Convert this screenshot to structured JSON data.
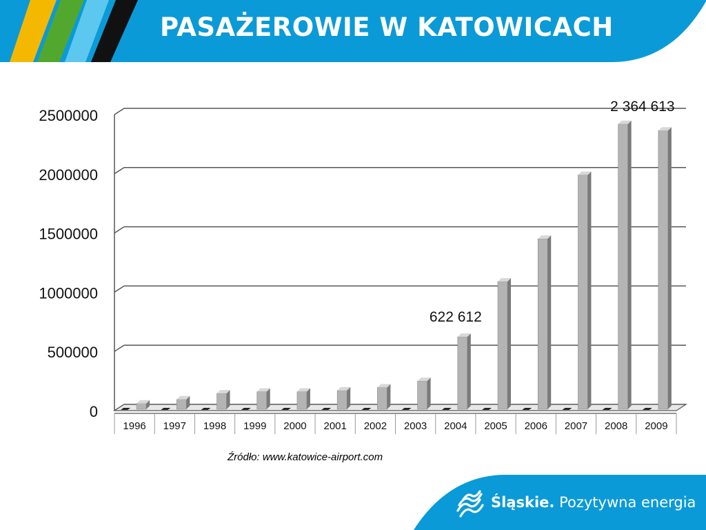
{
  "slide": {
    "title": "PASAŻEROWIE W KATOWICACH",
    "source": "Źródło: www.katowice-airport.com",
    "brand_name": "Śląskie.",
    "brand_slogan": "Pozytywna energia",
    "colors": {
      "header_blue": "#0a9ad8",
      "stripe_yellow": "#f5b800",
      "stripe_green": "#52a82e",
      "stripe_lightblue": "#5cc8f0",
      "stripe_black": "#111111",
      "bar_face": "#b4b4b4",
      "bar_side": "#7a7a7a",
      "bar_top": "#d8d8d8"
    }
  },
  "chart_data": {
    "type": "bar",
    "categories": [
      "1996",
      "1997",
      "1998",
      "1999",
      "2000",
      "2001",
      "2002",
      "2003",
      "2004",
      "2005",
      "2006",
      "2007",
      "2008",
      "2009"
    ],
    "values": [
      60000,
      95000,
      145000,
      160000,
      160000,
      170000,
      195000,
      250000,
      622612,
      1090000,
      1450000,
      1990000,
      2420000,
      2364613
    ],
    "ylim": [
      0,
      2500000
    ],
    "yticks": [
      "0",
      "500000",
      "1000000",
      "1500000",
      "2000000",
      "2500000"
    ],
    "annotations": [
      {
        "category": "2004",
        "text": "622 612"
      },
      {
        "category": "2009",
        "text": "2 364 613"
      }
    ],
    "grid": true,
    "legend": "none"
  }
}
